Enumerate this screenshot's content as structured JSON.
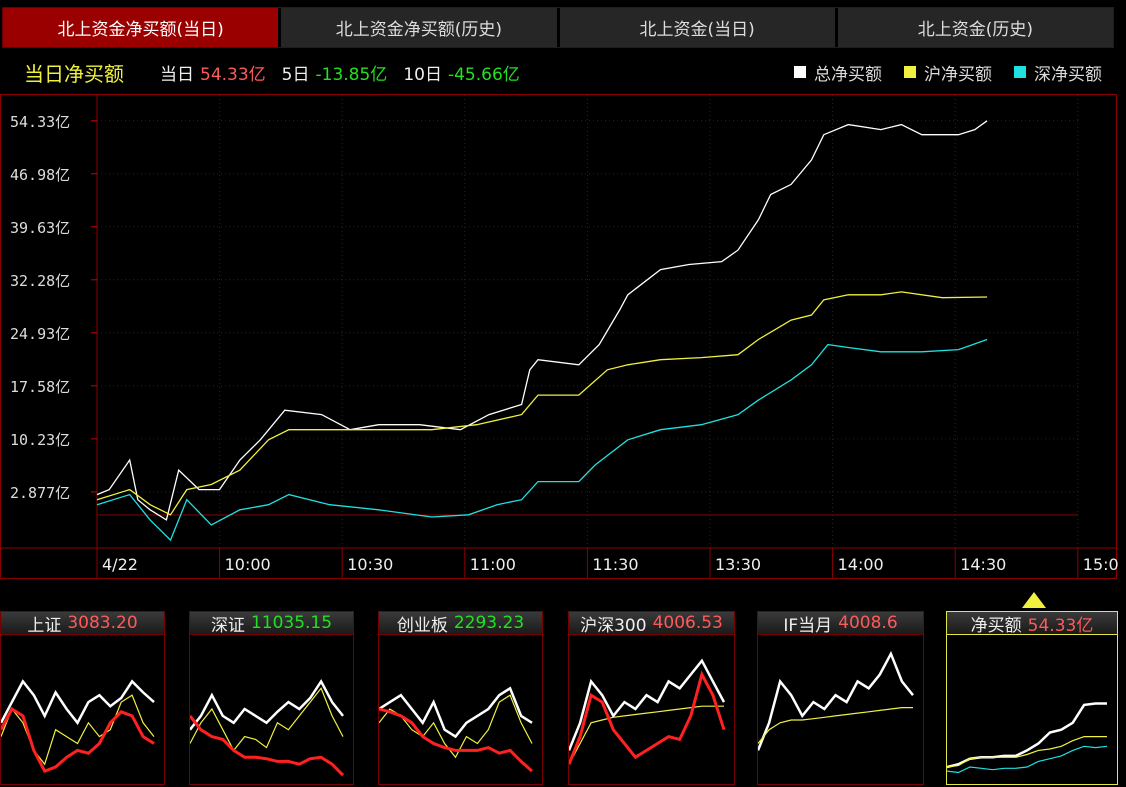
{
  "tabs": [
    {
      "label": "北上资金净买额(当日)",
      "active": true
    },
    {
      "label": "北上资金净买额(历史)"
    },
    {
      "label": "北上资金(当日)"
    },
    {
      "label": "北上资金(历史)"
    }
  ],
  "info": {
    "title": "当日净买额",
    "today_label": "当日",
    "today_value": "54.33亿",
    "d5_label": "5日",
    "d5_value": "-13.85亿",
    "d10_label": "10日",
    "d10_value": "-45.66亿"
  },
  "colors": {
    "total": "#ffffff",
    "sh": "#f0f040",
    "sz": "#20e0e0",
    "up": "#ff5a5a",
    "down": "#22e022",
    "grid": "#7a0000"
  },
  "chart_data": {
    "type": "line",
    "legend": "top-right",
    "ylim": [
      -4.9,
      57.9
    ],
    "yticks": [
      "54.33亿",
      "46.98亿",
      "39.63亿",
      "32.28亿",
      "24.93亿",
      "17.58亿",
      "10.23亿",
      "2.877亿"
    ],
    "ytick_values": [
      54.33,
      46.98,
      39.63,
      32.28,
      24.93,
      17.58,
      10.23,
      2.877
    ],
    "xticks": [
      "4/22",
      "10:00",
      "10:30",
      "11:00",
      "11:30",
      "13:30",
      "14:00",
      "14:30",
      "15:0"
    ],
    "grid": true,
    "series": [
      {
        "name": "总净买额",
        "color": "#ffffff",
        "x": [
          "9:30",
          "9:33",
          "9:38",
          "9:40",
          "9:43",
          "9:47",
          "9:50",
          "9:55",
          "10:00",
          "10:05",
          "10:10",
          "10:16",
          "10:25",
          "10:32",
          "10:39",
          "10:49",
          "10:59",
          "11:06",
          "11:14",
          "11:16",
          "11:18",
          "11:28",
          "13:03",
          "13:08",
          "13:10",
          "13:18",
          "13:25",
          "13:33",
          "13:37",
          "13:42",
          "13:45",
          "13:50",
          "13:55",
          "13:58",
          "14:04",
          "14:12",
          "14:17",
          "14:22",
          "14:31",
          "14:35",
          "14:38"
        ],
        "y": [
          2.5,
          3.2,
          7.3,
          1.8,
          0.4,
          -1.0,
          5.9,
          3.2,
          3.2,
          7.3,
          10.1,
          14.2,
          13.6,
          11.5,
          12.2,
          12.2,
          11.5,
          13.6,
          15.0,
          19.8,
          21.2,
          20.5,
          23.3,
          28.1,
          30.2,
          33.7,
          34.4,
          34.8,
          36.4,
          40.6,
          44.1,
          45.5,
          48.9,
          52.4,
          53.8,
          53.1,
          53.8,
          52.4,
          52.4,
          53.1,
          54.33
        ]
      },
      {
        "name": "沪净买额",
        "color": "#f0f040",
        "x": [
          "9:30",
          "9:38",
          "9:43",
          "9:48",
          "9:52",
          "9:58",
          "10:05",
          "10:12",
          "10:17",
          "10:27",
          "10:39",
          "10:52",
          "11:03",
          "11:14",
          "11:18",
          "11:28",
          "13:05",
          "13:10",
          "13:18",
          "13:28",
          "13:37",
          "13:42",
          "13:50",
          "13:55",
          "13:58",
          "14:04",
          "14:12",
          "14:17",
          "14:27",
          "14:38"
        ],
        "y": [
          1.8,
          3.2,
          1.1,
          -0.3,
          3.2,
          3.9,
          5.9,
          10.1,
          11.5,
          11.5,
          11.5,
          11.5,
          12.2,
          13.6,
          16.3,
          16.3,
          19.8,
          20.5,
          21.2,
          21.5,
          21.9,
          24.0,
          26.7,
          27.4,
          29.5,
          30.2,
          30.2,
          30.6,
          29.8,
          29.9
        ]
      },
      {
        "name": "深净买额",
        "color": "#20e0e0",
        "x": [
          "9:30",
          "9:38",
          "9:43",
          "9:48",
          "9:52",
          "9:58",
          "10:05",
          "10:12",
          "10:17",
          "10:27",
          "10:39",
          "10:52",
          "11:01",
          "11:08",
          "11:14",
          "11:18",
          "11:28",
          "13:02",
          "13:10",
          "13:18",
          "13:28",
          "13:37",
          "13:42",
          "13:50",
          "13:55",
          "13:59",
          "14:04",
          "14:12",
          "14:22",
          "14:31",
          "14:38"
        ],
        "y": [
          1.1,
          2.5,
          -1.0,
          -3.8,
          1.8,
          -1.7,
          0.4,
          1.1,
          2.5,
          1.1,
          0.4,
          -0.6,
          -0.3,
          1.1,
          1.8,
          4.3,
          4.3,
          6.6,
          10.1,
          11.5,
          12.2,
          13.6,
          15.6,
          18.4,
          20.5,
          23.3,
          22.9,
          22.3,
          22.3,
          22.6,
          24.0
        ]
      }
    ]
  },
  "panels": [
    {
      "name": "上证",
      "value": "3083.20",
      "dir": "up",
      "lines": [
        {
          "color": "#ffffff",
          "v": [
            40,
            55,
            70,
            60,
            45,
            62,
            50,
            40,
            55,
            60,
            52,
            58,
            70,
            62,
            55
          ]
        },
        {
          "color": "#f0f040",
          "v": [
            30,
            50,
            40,
            20,
            10,
            35,
            30,
            25,
            40,
            30,
            35,
            55,
            60,
            40,
            30
          ]
        },
        {
          "color": "#ff2020",
          "v": [
            35,
            50,
            45,
            20,
            5,
            8,
            15,
            20,
            18,
            25,
            40,
            48,
            45,
            30,
            25
          ]
        }
      ]
    },
    {
      "name": "深证",
      "value": "11035.15",
      "dir": "down",
      "lines": [
        {
          "color": "#ffffff",
          "v": [
            35,
            45,
            60,
            45,
            40,
            50,
            45,
            40,
            48,
            55,
            50,
            58,
            70,
            55,
            45
          ]
        },
        {
          "color": "#f0f040",
          "v": [
            25,
            40,
            50,
            35,
            20,
            30,
            28,
            22,
            40,
            35,
            45,
            55,
            65,
            45,
            30
          ]
        },
        {
          "color": "#ff2020",
          "v": [
            45,
            35,
            30,
            28,
            20,
            15,
            15,
            14,
            12,
            12,
            10,
            14,
            15,
            10,
            2
          ]
        }
      ]
    },
    {
      "name": "创业板",
      "value": "2293.23",
      "dir": "down",
      "lines": [
        {
          "color": "#ffffff",
          "v": [
            50,
            55,
            60,
            50,
            40,
            55,
            35,
            30,
            40,
            45,
            50,
            60,
            65,
            45,
            40
          ]
        },
        {
          "color": "#f0f040",
          "v": [
            40,
            50,
            45,
            35,
            30,
            40,
            25,
            15,
            30,
            25,
            35,
            55,
            60,
            40,
            25
          ]
        },
        {
          "color": "#ff2020",
          "v": [
            50,
            48,
            45,
            40,
            30,
            25,
            22,
            20,
            20,
            20,
            22,
            18,
            20,
            12,
            5
          ]
        }
      ]
    },
    {
      "name": "沪深300",
      "value": "4006.53",
      "dir": "up",
      "lines": [
        {
          "color": "#ffffff",
          "v": [
            20,
            40,
            70,
            60,
            45,
            55,
            50,
            60,
            55,
            70,
            65,
            75,
            85,
            70,
            55
          ]
        },
        {
          "color": "#f0f040",
          "v": [
            10,
            25,
            40,
            42,
            44,
            45,
            46,
            47,
            48,
            49,
            50,
            51,
            52,
            52,
            52
          ]
        },
        {
          "color": "#ff2020",
          "v": [
            10,
            30,
            60,
            55,
            35,
            25,
            15,
            20,
            25,
            30,
            28,
            45,
            75,
            60,
            35
          ]
        }
      ]
    },
    {
      "name": "IF当月",
      "value": "4008.6",
      "dir": "up",
      "lines": [
        {
          "color": "#ffffff",
          "v": [
            20,
            40,
            70,
            60,
            45,
            55,
            50,
            60,
            55,
            70,
            65,
            75,
            90,
            70,
            60
          ]
        },
        {
          "color": "#f0f040",
          "v": [
            25,
            35,
            40,
            42,
            42,
            43,
            44,
            45,
            46,
            47,
            48,
            49,
            50,
            51,
            51
          ]
        }
      ]
    },
    {
      "name": "净买额",
      "value": "54.33亿",
      "dir": "up",
      "selected": true,
      "lines": [
        {
          "color": "#ffffff",
          "v": [
            8,
            10,
            14,
            15,
            15,
            16,
            16,
            20,
            25,
            33,
            35,
            40,
            53,
            54,
            54
          ]
        },
        {
          "color": "#f0f040",
          "v": [
            8,
            9,
            14,
            15,
            15,
            15,
            15,
            17,
            20,
            21,
            23,
            27,
            30,
            30,
            30
          ]
        },
        {
          "color": "#20e0e0",
          "v": [
            5,
            4,
            8,
            7,
            6,
            7,
            7,
            8,
            12,
            14,
            16,
            20,
            23,
            22,
            23
          ]
        }
      ]
    }
  ]
}
